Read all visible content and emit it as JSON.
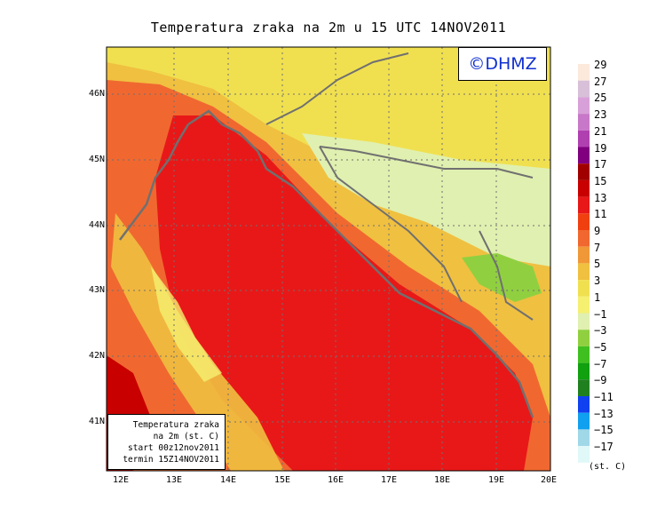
{
  "title": "Temperatura zraka na 2m u 15 UTC 14NOV2011",
  "logo": "©DHMZ",
  "info_box": [
    "Temperatura zraka",
    "na 2m (st. C)",
    "start 00z12nov2011",
    "termin 15Z14NOV2011"
  ],
  "lat_labels": [
    "46N",
    "45N",
    "44N",
    "43N",
    "42N",
    "41N"
  ],
  "lon_labels": [
    "12E",
    "13E",
    "14E",
    "15E",
    "16E",
    "17E",
    "18E",
    "19E",
    "20E"
  ],
  "legend": {
    "units": "(st. C)",
    "labels": [
      "29",
      "27",
      "25",
      "23",
      "21",
      "19",
      "17",
      "15",
      "13",
      "11",
      "9",
      "7",
      "5",
      "3",
      "1",
      "−1",
      "−3",
      "−5",
      "−7",
      "−9",
      "−11",
      "−13",
      "−15",
      "−17"
    ],
    "colors": [
      "#fde8dc",
      "#d8c0d8",
      "#d8a0d8",
      "#c878c8",
      "#b040b0",
      "#800080",
      "#a00000",
      "#c80000",
      "#e81818",
      "#f04010",
      "#f06830",
      "#f09838",
      "#f0c040",
      "#f0e050",
      "#f5f070",
      "#e0f0b0",
      "#90d040",
      "#40c020",
      "#10a010",
      "#208020",
      "#1040f0",
      "#10a0f0",
      "#a0d8e8",
      "#e0f8f8"
    ]
  },
  "colors": {
    "coast": "#707070",
    "sea_red": "#e81818",
    "orange": "#f06830",
    "yellow": "#f0e050",
    "lightgreen": "#e0f0b0"
  }
}
